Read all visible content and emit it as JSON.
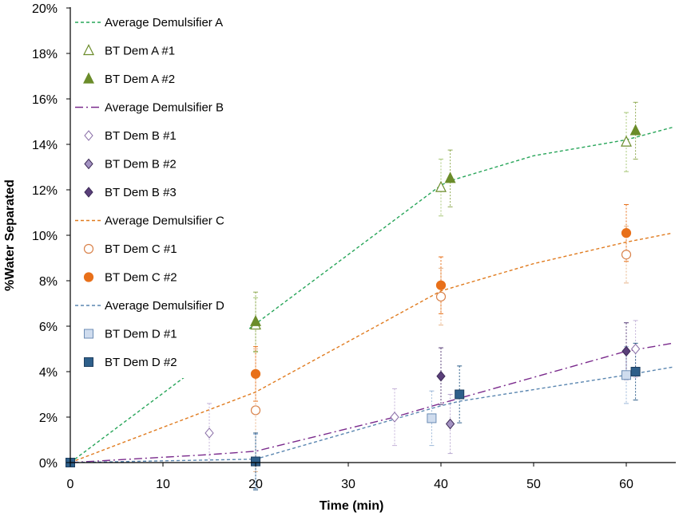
{
  "chart_data": {
    "type": "scatter",
    "xlabel": "Time (min)",
    "ylabel": "%Water Separated",
    "xlim": [
      0,
      65
    ],
    "ylim": [
      0,
      20
    ],
    "x_ticks": [
      "0",
      "10",
      "20",
      "30",
      "40",
      "50",
      "60"
    ],
    "y_ticks": [
      "0%",
      "2%",
      "4%",
      "6%",
      "8%",
      "10%",
      "12%",
      "14%",
      "16%",
      "18%",
      "20%"
    ],
    "grid": false,
    "legend_position": "top-left",
    "series": [
      {
        "name": "Average Demulsifier A",
        "kind": "line",
        "style": "dash",
        "color": "#27a559",
        "points": [
          [
            0,
            0
          ],
          [
            20,
            6.1
          ],
          [
            40,
            12.2
          ],
          [
            41,
            12.4
          ],
          [
            50,
            13.5
          ],
          [
            60,
            14.2
          ],
          [
            65,
            14.75
          ]
        ]
      },
      {
        "name": "BT Dem A #1",
        "kind": "marker",
        "marker": "triangle-open",
        "color": "#6b8c2a",
        "error_color": "#a9c87a",
        "points": [
          [
            20,
            6.05,
            1.2
          ],
          [
            40,
            12.1,
            1.25
          ],
          [
            60,
            14.1,
            1.3
          ]
        ]
      },
      {
        "name": "BT Dem A #2",
        "kind": "marker",
        "marker": "triangle-filled",
        "color": "#6b8c2a",
        "error_color": "#8faa52",
        "points": [
          [
            20,
            6.2,
            1.3
          ],
          [
            41,
            12.5,
            1.25
          ],
          [
            61,
            14.6,
            1.25
          ]
        ]
      },
      {
        "name": "Average Demulsifier B",
        "kind": "line",
        "style": "dashdot",
        "color": "#7a2a8c",
        "points": [
          [
            0,
            0
          ],
          [
            15,
            0.35
          ],
          [
            20,
            0.5
          ],
          [
            35,
            2.0
          ],
          [
            40,
            2.6
          ],
          [
            60,
            4.9
          ],
          [
            65,
            5.25
          ]
        ]
      },
      {
        "name": "BT Dem B #1",
        "kind": "marker",
        "marker": "diamond-open",
        "color": "#8a6fa8",
        "error_color": "#c4b3d8",
        "points": [
          [
            15,
            1.3,
            1.3
          ],
          [
            35,
            2.0,
            1.25
          ],
          [
            61,
            5.0,
            1.25
          ]
        ]
      },
      {
        "name": "BT Dem B #2",
        "kind": "marker",
        "marker": "diamond-light",
        "color": "#a493c2",
        "error_color": "#b8a8d0",
        "points": [
          [
            41,
            1.7,
            1.3
          ]
        ]
      },
      {
        "name": "BT Dem B #3",
        "kind": "marker",
        "marker": "diamond-dark",
        "color": "#5a3f7a",
        "error_color": "#5a3f7a",
        "points": [
          [
            40,
            3.8,
            1.25
          ],
          [
            60,
            4.9,
            1.25
          ]
        ]
      },
      {
        "name": "Average Demulsifier C",
        "kind": "line",
        "style": "dash",
        "color": "#e07b1f",
        "points": [
          [
            0,
            0
          ],
          [
            20,
            3.1
          ],
          [
            40,
            7.55
          ],
          [
            50,
            8.75
          ],
          [
            60,
            9.7
          ],
          [
            65,
            10.1
          ]
        ]
      },
      {
        "name": "BT Dem C #1",
        "kind": "marker",
        "marker": "circle-open",
        "color": "#d9824a",
        "error_color": "#e8b48a",
        "points": [
          [
            20,
            2.3,
            2.7
          ],
          [
            40,
            7.3,
            1.25
          ],
          [
            60,
            9.15,
            1.25
          ]
        ]
      },
      {
        "name": "BT Dem C #2",
        "kind": "marker",
        "marker": "circle-filled",
        "color": "#e8701a",
        "error_color": "#e8701a",
        "points": [
          [
            20,
            3.9,
            1.2
          ],
          [
            40,
            7.8,
            1.25
          ],
          [
            60,
            10.1,
            1.25
          ]
        ]
      },
      {
        "name": "Average Demulsifier D",
        "kind": "line",
        "style": "dash",
        "color": "#5a86b0",
        "points": [
          [
            0,
            0
          ],
          [
            20,
            0.15
          ],
          [
            40,
            2.5
          ],
          [
            42,
            2.7
          ],
          [
            60,
            3.85
          ],
          [
            65,
            4.2
          ]
        ]
      },
      {
        "name": "BT Dem D #1",
        "kind": "marker",
        "marker": "square-light",
        "color": "#7f9fc4",
        "error_color": "#9bb7d8",
        "points": [
          [
            20,
            0.05,
            1.2
          ],
          [
            39,
            1.95,
            1.2
          ],
          [
            60,
            3.85,
            1.25
          ]
        ]
      },
      {
        "name": "BT Dem D #2",
        "kind": "marker",
        "marker": "square-dark",
        "color": "#2e5f8a",
        "error_color": "#2e5f8a",
        "points": [
          [
            0,
            0,
            0
          ],
          [
            20,
            0.05,
            1.25
          ],
          [
            42,
            3.0,
            1.25
          ],
          [
            61,
            4.0,
            1.25
          ]
        ]
      }
    ]
  }
}
